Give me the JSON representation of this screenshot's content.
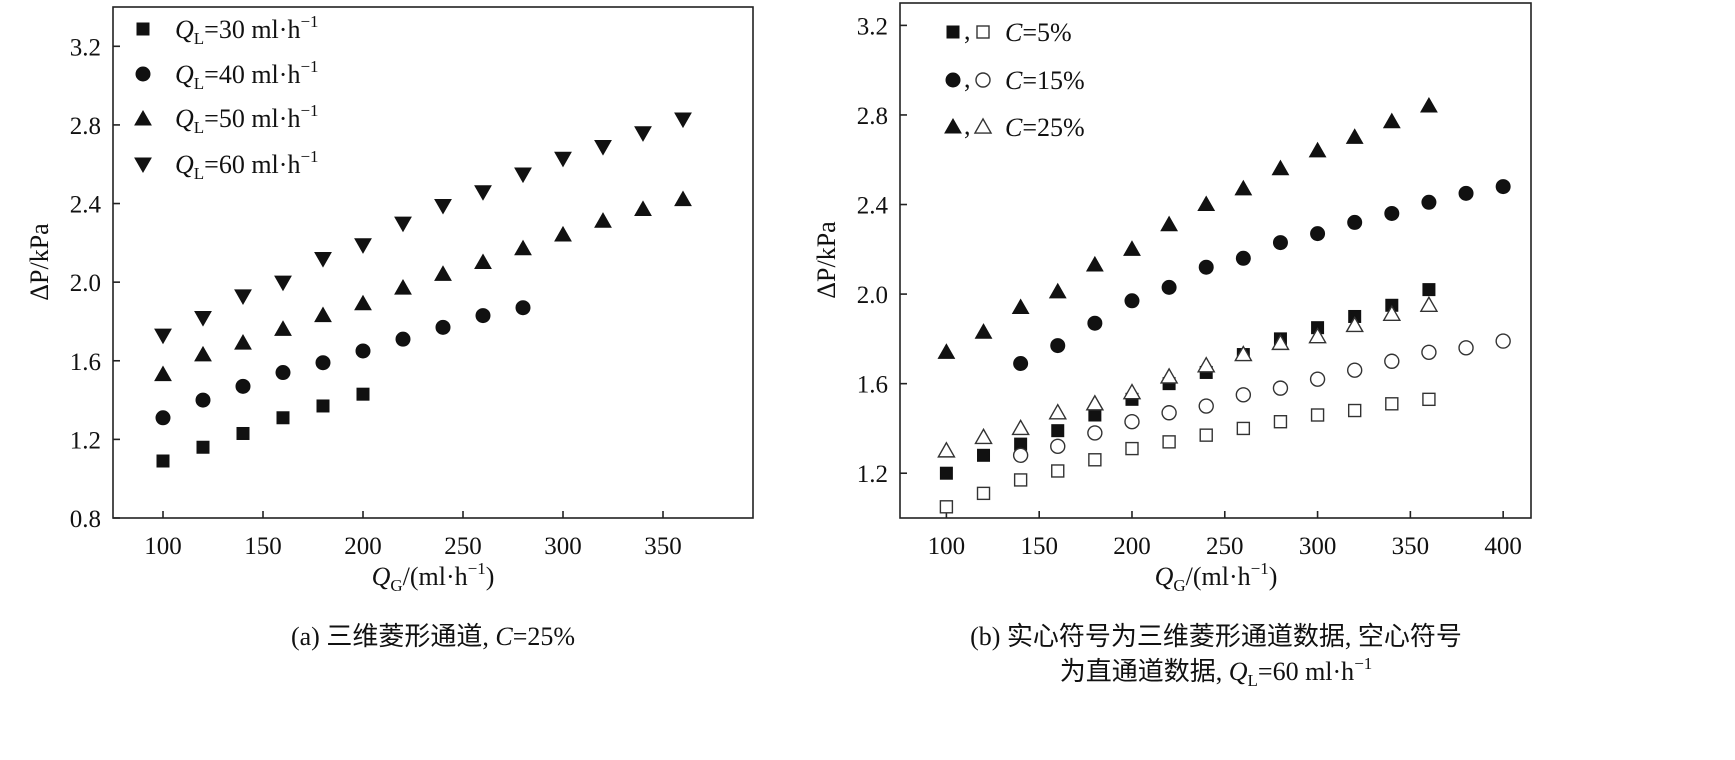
{
  "chart_data": [
    {
      "type": "scatter",
      "panel_id": "a",
      "caption_prefix": "(a) 三维菱形通道, ",
      "caption_var": "C",
      "caption_suffix": "=25%",
      "xlabel": {
        "var": "Q",
        "sub": "G",
        "rest": "/(ml·h",
        "sup": "−1",
        "end": ")"
      },
      "ylabel": {
        "text": "ΔP/kPa"
      },
      "xlim": [
        75,
        395
      ],
      "ylim": [
        0.8,
        3.4
      ],
      "xticks": [
        100,
        150,
        200,
        250,
        300,
        350
      ],
      "yticks": [
        0.8,
        1.2,
        1.6,
        2.0,
        2.4,
        2.8,
        3.2
      ],
      "legend_position": "top-left",
      "series": [
        {
          "marker": "square",
          "fill": "filled",
          "legend": {
            "var": "Q",
            "sub": "L",
            "value": "=30 ml·h",
            "sup": "−1"
          },
          "x": [
            100,
            120,
            140,
            160,
            180,
            200
          ],
          "y": [
            1.09,
            1.16,
            1.23,
            1.31,
            1.37,
            1.43
          ]
        },
        {
          "marker": "circle",
          "fill": "filled",
          "legend": {
            "var": "Q",
            "sub": "L",
            "value": "=40 ml·h",
            "sup": "−1"
          },
          "x": [
            100,
            120,
            140,
            160,
            180,
            200,
            220,
            240,
            260,
            280
          ],
          "y": [
            1.31,
            1.4,
            1.47,
            1.54,
            1.59,
            1.65,
            1.71,
            1.77,
            1.83,
            1.87
          ]
        },
        {
          "marker": "triangle-up",
          "fill": "filled",
          "legend": {
            "var": "Q",
            "sub": "L",
            "value": "=50 ml·h",
            "sup": "−1"
          },
          "x": [
            100,
            120,
            140,
            160,
            180,
            200,
            220,
            240,
            260,
            280,
            300,
            320,
            340,
            360
          ],
          "y": [
            1.53,
            1.63,
            1.69,
            1.76,
            1.83,
            1.89,
            1.97,
            2.04,
            2.1,
            2.17,
            2.24,
            2.31,
            2.37,
            2.42
          ]
        },
        {
          "marker": "triangle-down",
          "fill": "filled",
          "legend": {
            "var": "Q",
            "sub": "L",
            "value": "=60 ml·h",
            "sup": "−1"
          },
          "x": [
            100,
            120,
            140,
            160,
            180,
            200,
            220,
            240,
            260,
            280,
            300,
            320,
            340,
            360
          ],
          "y": [
            1.73,
            1.82,
            1.93,
            2.0,
            2.12,
            2.19,
            2.3,
            2.39,
            2.46,
            2.55,
            2.63,
            2.69,
            2.76,
            2.83
          ]
        }
      ]
    },
    {
      "type": "scatter",
      "panel_id": "b",
      "caption_line1": "(b) 实心符号为三维菱形通道数据, 空心符号",
      "caption_line2_prefix": "为直通道数据, ",
      "caption_line2_var": "Q",
      "caption_line2_sub": "L",
      "caption_line2_suffix": "=60 ml·h",
      "caption_line2_sup": "−1",
      "xlabel": {
        "var": "Q",
        "sub": "G",
        "rest": "/(ml·h",
        "sup": "−1",
        "end": ")"
      },
      "ylabel": {
        "text": "ΔP/kPa"
      },
      "xlim": [
        75,
        415
      ],
      "ylim": [
        1.0,
        3.3
      ],
      "xticks": [
        100,
        150,
        200,
        250,
        300,
        350,
        400
      ],
      "yticks": [
        1.2,
        1.6,
        2.0,
        2.4,
        2.8,
        3.2
      ],
      "legend_position": "top-left",
      "legend_entries": [
        {
          "marker": "square",
          "separator": ",",
          "var": "C",
          "value": "=5%"
        },
        {
          "marker": "circle",
          "separator": ",",
          "var": "C",
          "value": "=15%"
        },
        {
          "marker": "triangle-up",
          "separator": ",",
          "var": "C",
          "value": "=25%"
        }
      ],
      "series": [
        {
          "name": "C=5% diamond channel",
          "marker": "square",
          "fill": "filled",
          "x": [
            100,
            120,
            140,
            160,
            180,
            200,
            220,
            240,
            260,
            280,
            300,
            320,
            340,
            360
          ],
          "y": [
            1.2,
            1.28,
            1.33,
            1.39,
            1.46,
            1.53,
            1.6,
            1.65,
            1.73,
            1.8,
            1.85,
            1.9,
            1.95,
            2.02
          ]
        },
        {
          "name": "C=5% straight channel",
          "marker": "square",
          "fill": "open",
          "x": [
            100,
            120,
            140,
            160,
            180,
            200,
            220,
            240,
            260,
            280,
            300,
            320,
            340,
            360
          ],
          "y": [
            1.05,
            1.11,
            1.17,
            1.21,
            1.26,
            1.31,
            1.34,
            1.37,
            1.4,
            1.43,
            1.46,
            1.48,
            1.51,
            1.53
          ]
        },
        {
          "name": "C=15% diamond channel",
          "marker": "circle",
          "fill": "filled",
          "x": [
            140,
            160,
            180,
            200,
            220,
            240,
            260,
            280,
            300,
            320,
            340,
            360,
            380,
            400
          ],
          "y": [
            1.69,
            1.77,
            1.87,
            1.97,
            2.03,
            2.12,
            2.16,
            2.23,
            2.27,
            2.32,
            2.36,
            2.41,
            2.45,
            2.48
          ]
        },
        {
          "name": "C=15% straight channel",
          "marker": "circle",
          "fill": "open",
          "x": [
            140,
            160,
            180,
            200,
            220,
            240,
            260,
            280,
            300,
            320,
            340,
            360,
            380,
            400
          ],
          "y": [
            1.28,
            1.32,
            1.38,
            1.43,
            1.47,
            1.5,
            1.55,
            1.58,
            1.62,
            1.66,
            1.7,
            1.74,
            1.76,
            1.79
          ]
        },
        {
          "name": "C=25% diamond channel",
          "marker": "triangle-up",
          "fill": "filled",
          "x": [
            100,
            120,
            140,
            160,
            180,
            200,
            220,
            240,
            260,
            280,
            300,
            320,
            340,
            360
          ],
          "y": [
            1.74,
            1.83,
            1.94,
            2.01,
            2.13,
            2.2,
            2.31,
            2.4,
            2.47,
            2.56,
            2.64,
            2.7,
            2.77,
            2.84
          ]
        },
        {
          "name": "C=25% straight channel",
          "marker": "triangle-up",
          "fill": "open",
          "x": [
            100,
            120,
            140,
            160,
            180,
            200,
            220,
            240,
            260,
            280,
            300,
            320,
            340,
            360
          ],
          "y": [
            1.3,
            1.36,
            1.4,
            1.47,
            1.51,
            1.56,
            1.63,
            1.68,
            1.73,
            1.78,
            1.81,
            1.86,
            1.91,
            1.95
          ]
        }
      ]
    }
  ]
}
